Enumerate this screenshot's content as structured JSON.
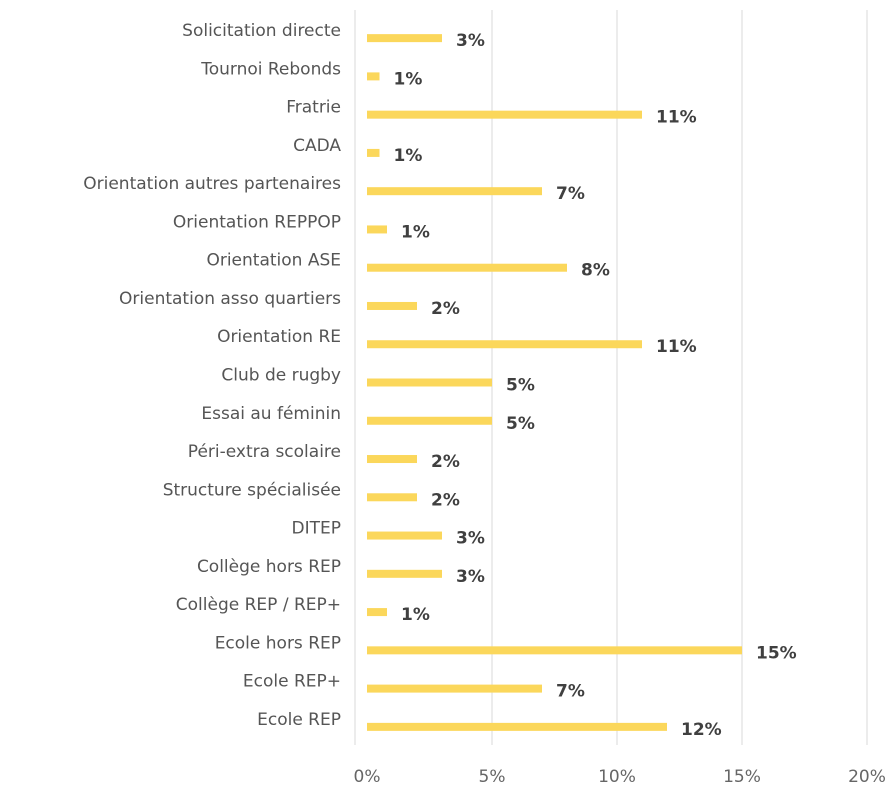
{
  "chart_data": {
    "type": "barh",
    "categories": [
      "Solicitation directe",
      "Tournoi Rebonds",
      "Fratrie",
      "CADA",
      "Orientation autres partenaires",
      "Orientation REPPOP",
      "Orientation ASE",
      "Orientation asso quartiers",
      "Orientation RE",
      "Club de rugby",
      "Essai au féminin",
      "Péri-extra scolaire",
      "Structure spécialisée",
      "DITEP",
      "Collège hors REP",
      "Collège REP / REP+",
      "Ecole hors REP",
      "Ecole REP+",
      "Ecole REP"
    ],
    "values": [
      3,
      0.5,
      11,
      0.5,
      7,
      0.8,
      8,
      2,
      11,
      5,
      5,
      2,
      2,
      3,
      3,
      0.8,
      15,
      7,
      12
    ],
    "value_labels": [
      "3%",
      "1%",
      "11%",
      "1%",
      "7%",
      "1%",
      "8%",
      "2%",
      "11%",
      "5%",
      "5%",
      "2%",
      "2%",
      "3%",
      "3%",
      "1%",
      "15%",
      "7%",
      "12%"
    ],
    "color": "#fbd75b",
    "xlim": [
      0,
      20
    ],
    "xticks": [
      {
        "value": 0,
        "label": "0%"
      },
      {
        "value": 5,
        "label": "5%"
      },
      {
        "value": 10,
        "label": "10%"
      },
      {
        "value": 15,
        "label": "15%"
      },
      {
        "value": 20,
        "label": "20%"
      }
    ],
    "grid": true
  }
}
